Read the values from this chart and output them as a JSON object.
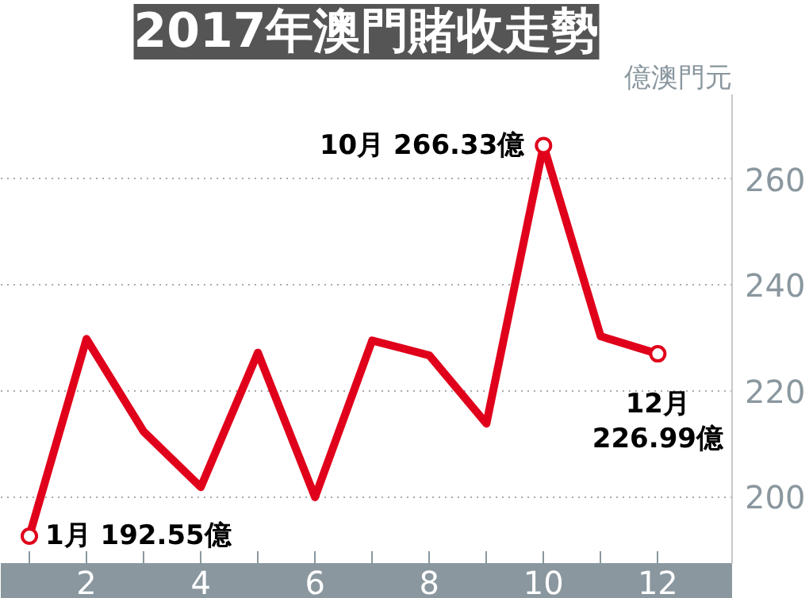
{
  "chart_data": {
    "type": "line",
    "title": "2017年澳門賭收走勢",
    "ylabel": "億澳門元",
    "x": [
      1,
      2,
      3,
      4,
      5,
      6,
      7,
      8,
      9,
      10,
      11,
      12
    ],
    "series": [
      {
        "color": "#e0001b",
        "values": [
          192.55,
          229.8,
          212.3,
          201.8,
          227.2,
          199.9,
          229.5,
          226.7,
          213.8,
          266.33,
          230.3,
          226.99
        ]
      }
    ],
    "xlim": [
      0.5,
      13.3
    ],
    "ylim": [
      187.3,
      276
    ],
    "xticks": [
      {
        "value": 1,
        "label": null
      },
      2,
      {
        "value": 3,
        "label": null
      },
      4,
      {
        "value": 5,
        "label": null
      },
      6,
      {
        "value": 7,
        "label": null
      },
      8,
      {
        "value": 9,
        "label": null
      },
      10,
      {
        "value": 11,
        "label": null
      },
      12
    ],
    "yticks": [
      200,
      220,
      240,
      260
    ],
    "grid": "y",
    "annotations": [
      {
        "text": "1月 192.55億",
        "x": 1,
        "y": 192.55
      },
      {
        "text": "10月 266.33億",
        "x": 10,
        "y": 266.33
      },
      {
        "text": "12月\n226.99億",
        "x": 12,
        "y": 226.99
      }
    ]
  }
}
